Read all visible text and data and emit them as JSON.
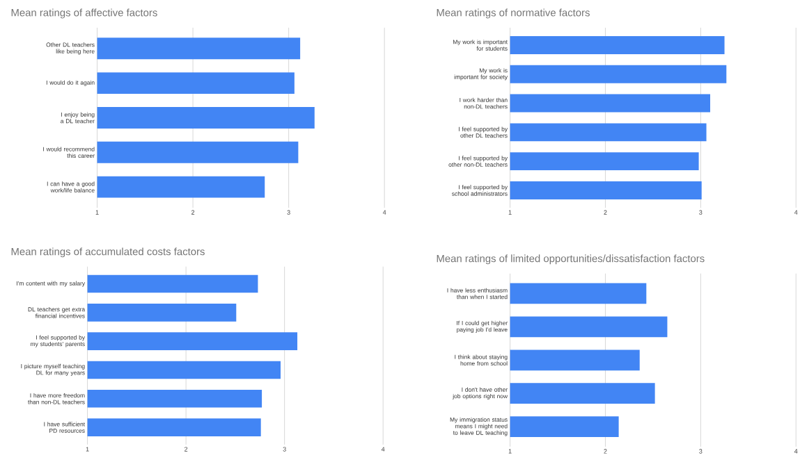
{
  "chart_data": [
    {
      "type": "bar",
      "orientation": "horizontal",
      "title": "Mean ratings of affective factors",
      "categories": [
        "Other DL teachers like being here",
        "I would do it again",
        "I enjoy being a DL teacher",
        "I would recommend this career",
        "I can have a good work/life balance"
      ],
      "values": [
        3.12,
        3.06,
        3.27,
        3.1,
        2.75
      ],
      "color": "#4285f4",
      "xlim": [
        1,
        4
      ],
      "xticks": [
        1,
        2,
        3,
        4
      ],
      "grid": "x"
    },
    {
      "type": "bar",
      "orientation": "horizontal",
      "title": "Mean ratings of normative factors",
      "categories": [
        "My work is important for students",
        "My work is important for society",
        "I work harder than non-DL teachers",
        "I feel supported by other DL teachers",
        "I feel supported by other non-DL teachers",
        "I feel supported by school administrators"
      ],
      "values": [
        3.25,
        3.27,
        3.1,
        3.06,
        2.98,
        3.01
      ],
      "color": "#4285f4",
      "xlim": [
        1,
        4
      ],
      "xticks": [
        1,
        2,
        3,
        4
      ],
      "grid": "x"
    },
    {
      "type": "bar",
      "orientation": "horizontal",
      "title": "Mean ratings of accumulated costs factors",
      "categories": [
        "I'm content with my salary",
        "DL teachers get extra financial incentives",
        "I feel supported by my students' parents",
        "I picture myself teaching DL for many years",
        "I have more freedom than non-DL teachers",
        "I have sufficient PD resources"
      ],
      "values": [
        2.73,
        2.51,
        3.13,
        2.96,
        2.77,
        2.76
      ],
      "color": "#4285f4",
      "xlim": [
        1,
        4
      ],
      "xticks": [
        1,
        2,
        3,
        4
      ],
      "grid": "x"
    },
    {
      "type": "bar",
      "orientation": "horizontal",
      "title": "Mean ratings of limited opportunities/dissatisfaction factors",
      "categories": [
        "I have less enthusiasm than when I started",
        "If I could get higher paying job I'd leave",
        "I think about staying home from school",
        "I don't have other job options right now",
        "My immigration status means I might need to leave DL teaching"
      ],
      "values": [
        2.43,
        2.65,
        2.36,
        2.52,
        2.14
      ],
      "color": "#4285f4",
      "xlim": [
        1,
        4
      ],
      "xticks": [
        1,
        2,
        3,
        4
      ],
      "grid": "x"
    }
  ]
}
